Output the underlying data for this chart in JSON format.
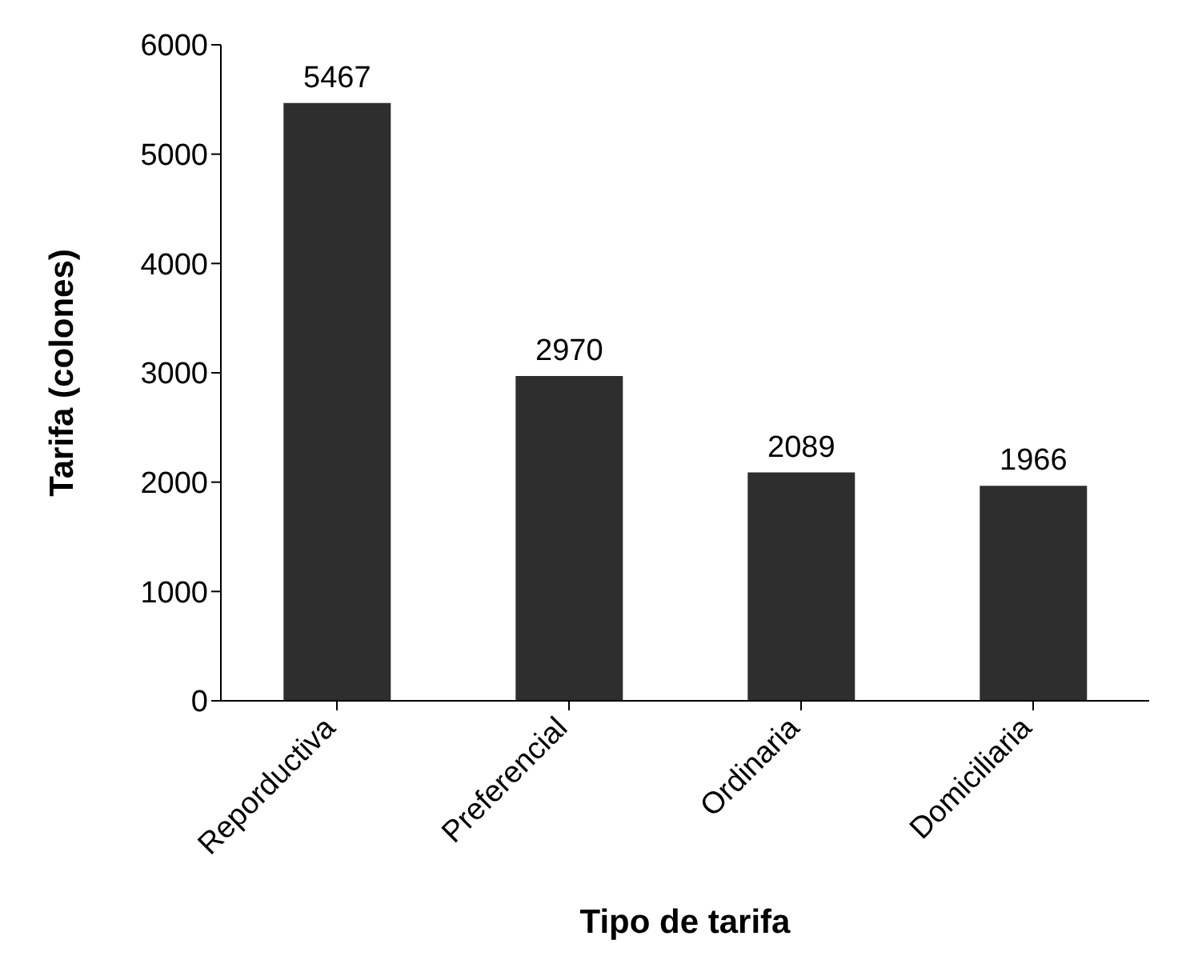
{
  "chart_data": {
    "type": "bar",
    "xlabel": "Tipo de tarifa",
    "ylabel": "Tarifa (colones)",
    "categories": [
      "Reporductiva",
      "Preferencial",
      "Ordinaria",
      "Domiciliaria"
    ],
    "values": [
      5467,
      2970,
      2089,
      1966
    ],
    "color": "#2e2e2e",
    "ylim": [
      0,
      6000
    ],
    "yticks": [
      0,
      1000,
      2000,
      3000,
      4000,
      5000,
      6000
    ],
    "grid": false,
    "data_labels": true
  }
}
